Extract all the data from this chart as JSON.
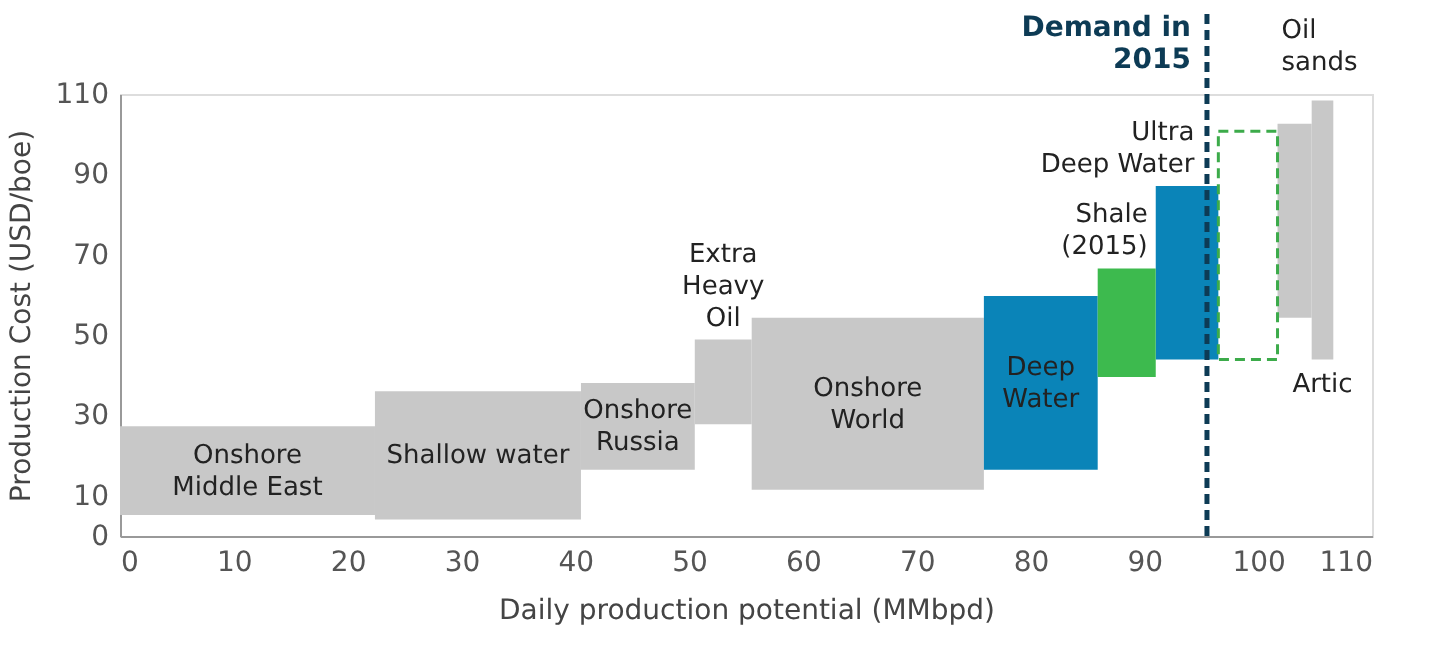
{
  "chart_data": {
    "type": "bar",
    "xlabel": "Daily production potential (MMbpd)",
    "ylabel": "Production Cost (USD/boe)",
    "annotations": [
      "Onshore\nMiddle East",
      "Shallow water",
      "Onshore\nRussia",
      "Extra\nHeavy\nOil",
      "Onshore\nWorld",
      "Deep\nWater",
      "Shale\n(2015)",
      "Ultra\nDeep Water",
      "Oil\nsands",
      "Artic"
    ],
    "x": [
      11.2,
      31.45,
      45.5,
      53,
      65.7,
      80.9,
      88.45,
      93.75,
      99.1,
      103.2,
      105.65
    ],
    "series": [
      {
        "color": "#c8c8c8",
        "base": [
          5.2,
          4.1,
          16.5,
          27.8,
          11.5,
          null,
          null,
          null,
          null,
          54.3,
          43.9
        ],
        "values": [
          22.1,
          31.9,
          21.6,
          21.1,
          42.8,
          null,
          null,
          null,
          null,
          48.3,
          64.5
        ]
      },
      {
        "color": "#0a84b8",
        "base": [
          null,
          null,
          null,
          null,
          null,
          16.5,
          null,
          43.9,
          null,
          null,
          null
        ],
        "values": [
          null,
          null,
          null,
          null,
          null,
          43.2,
          null,
          43.2,
          null,
          null,
          null
        ]
      },
      {
        "color": "#3dba4e",
        "base": [
          null,
          null,
          null,
          null,
          null,
          null,
          39.6,
          null,
          null,
          null,
          null
        ],
        "values": [
          null,
          null,
          null,
          null,
          null,
          null,
          27,
          null,
          null,
          null,
          null
        ]
      },
      {
        "color": "#3cab4a",
        "line_style": "dashed",
        "base": [
          null,
          null,
          null,
          null,
          null,
          null,
          null,
          null,
          43.9,
          null,
          null
        ],
        "values": [
          null,
          null,
          null,
          null,
          null,
          null,
          null,
          null,
          56.8,
          null,
          null
        ]
      }
    ],
    "xlim": [
      0,
      110
    ],
    "xticks": [
      0,
      10,
      20,
      30,
      40,
      50,
      60,
      70,
      80,
      90,
      100,
      110
    ],
    "ylim": [
      0,
      110
    ],
    "yticks": [
      0,
      10,
      30,
      50,
      70,
      90,
      110
    ],
    "ref_lines": [
      {
        "axis": "x",
        "value": 95.5,
        "label": "Demand in\n2015",
        "color": "#0d3b55",
        "line_style": "dashed"
      }
    ],
    "grid": false
  }
}
